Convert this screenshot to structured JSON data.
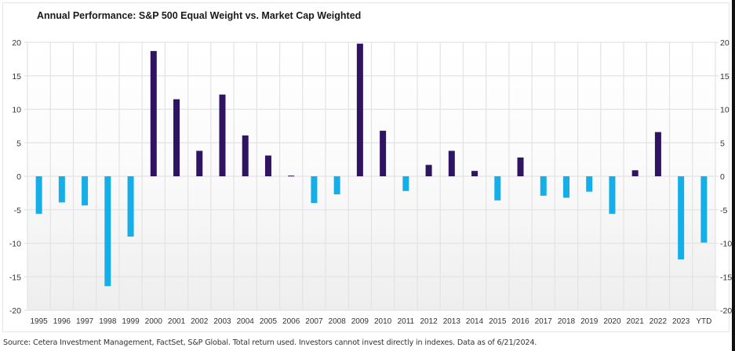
{
  "chart_data": {
    "type": "bar",
    "title": "Annual Performance: S&P 500 Equal Weight vs. Market Cap Weighted",
    "xlabel": "",
    "ylabel": "",
    "ylim": [
      -20,
      20
    ],
    "yticks": [
      20,
      15,
      10,
      5,
      0,
      -5,
      -10,
      -15,
      -20
    ],
    "grid": true,
    "legend": "none",
    "secondary_y_axis": true,
    "categories": [
      "1995",
      "1996",
      "1997",
      "1998",
      "1999",
      "2000",
      "2001",
      "2002",
      "2003",
      "2004",
      "2005",
      "2006",
      "2007",
      "2008",
      "2009",
      "2010",
      "2011",
      "2012",
      "2013",
      "2014",
      "2015",
      "2016",
      "2017",
      "2018",
      "2019",
      "2020",
      "2021",
      "2022",
      "2023",
      "YTD"
    ],
    "values": [
      -5.6,
      -3.9,
      -4.35,
      -16.4,
      -9.0,
      18.7,
      11.5,
      3.8,
      12.2,
      6.1,
      3.1,
      0.1,
      -4.0,
      -2.7,
      19.8,
      6.8,
      -2.2,
      1.7,
      3.8,
      0.8,
      -3.6,
      2.8,
      -2.9,
      -3.2,
      -2.3,
      -5.6,
      0.9,
      6.6,
      -12.4,
      -9.9
    ],
    "colors": {
      "positive": "#2e1462",
      "negative": "#14aee8",
      "grid": "#e3e3e3",
      "tick_label": "#333333"
    }
  },
  "footer": {
    "source": "Source: Cetera Investment Management, FactSet, S&P Global. Total return used. Investors cannot invest directly in indexes. Data as of 6/21/2024."
  }
}
